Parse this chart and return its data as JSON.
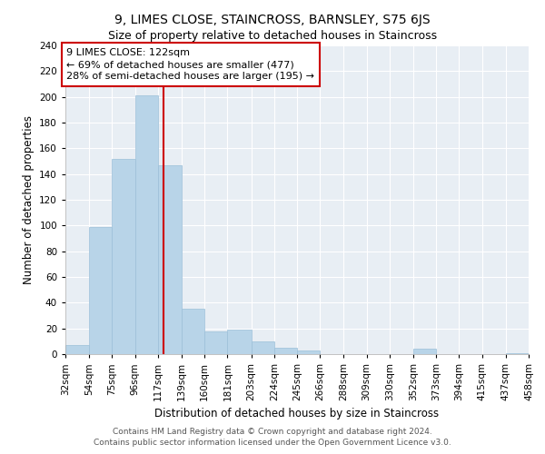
{
  "title": "9, LIMES CLOSE, STAINCROSS, BARNSLEY, S75 6JS",
  "subtitle": "Size of property relative to detached houses in Staincross",
  "xlabel": "Distribution of detached houses by size in Staincross",
  "ylabel": "Number of detached properties",
  "bar_edges": [
    32,
    54,
    75,
    96,
    117,
    139,
    160,
    181,
    203,
    224,
    245,
    266,
    288,
    309,
    330,
    352,
    373,
    394,
    415,
    437,
    458
  ],
  "bar_heights": [
    7,
    99,
    152,
    201,
    147,
    35,
    18,
    19,
    10,
    5,
    3,
    0,
    0,
    0,
    0,
    4,
    0,
    0,
    0,
    1
  ],
  "bar_color": "#b8d4e8",
  "bar_edgecolor": "#9bbfd8",
  "vline_x": 122,
  "vline_color": "#cc0000",
  "ylim": [
    0,
    240
  ],
  "yticks": [
    0,
    20,
    40,
    60,
    80,
    100,
    120,
    140,
    160,
    180,
    200,
    220,
    240
  ],
  "annotation_title": "9 LIMES CLOSE: 122sqm",
  "annotation_line1": "← 69% of detached houses are smaller (477)",
  "annotation_line2": "28% of semi-detached houses are larger (195) →",
  "footer_line1": "Contains HM Land Registry data © Crown copyright and database right 2024.",
  "footer_line2": "Contains public sector information licensed under the Open Government Licence v3.0.",
  "plot_bg_color": "#e8eef4",
  "fig_bg_color": "#ffffff",
  "grid_color": "#ffffff",
  "title_fontsize": 10,
  "subtitle_fontsize": 9,
  "axis_label_fontsize": 8.5,
  "tick_fontsize": 7.5,
  "annotation_fontsize": 8,
  "footer_fontsize": 6.5
}
